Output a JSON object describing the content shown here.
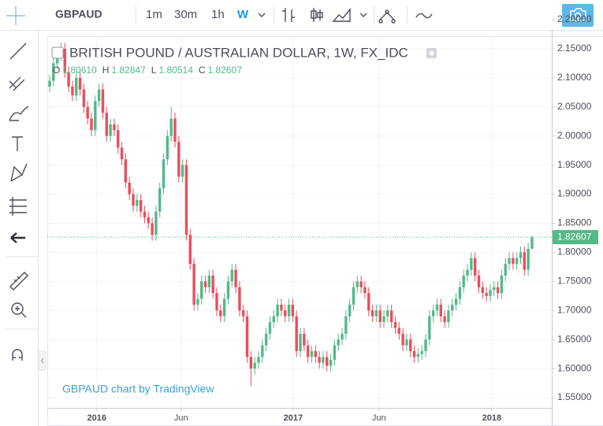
{
  "header": {
    "symbol": "GBPAUD",
    "intervals": [
      "1m",
      "30m",
      "1h",
      "W"
    ]
  },
  "legend": {
    "title": "BRITISH POUND / AUSTRALIAN DOLLAR, 1W, FX_IDC",
    "ohlc": [
      {
        "key": "O",
        "value": "1.80610"
      },
      {
        "key": "H",
        "value": "1.82847"
      },
      {
        "key": "L",
        "value": "1.80514"
      },
      {
        "key": "C",
        "value": "1.82607"
      }
    ]
  },
  "watermark": "GBPAUD chart by TradingView",
  "chart_data": {
    "type": "candlestick",
    "up_color": "#53b987",
    "down_color": "#eb4d5c",
    "grid": true,
    "xlim": [
      -0.62,
      132.2
    ],
    "ylim": [
      1.5338,
      2.2095
    ],
    "xticks": [
      {
        "value": 12.4,
        "label": "2016"
      },
      {
        "value": 34.6,
        "label": "Jun"
      },
      {
        "value": 64.1,
        "label": "2017"
      },
      {
        "value": 86.7,
        "label": "Jun"
      },
      {
        "value": 116.4,
        "label": "2018"
      }
    ],
    "yticks": [
      {
        "value": 2.2,
        "label": "2.20000"
      },
      {
        "value": 2.15,
        "label": "2.15000"
      },
      {
        "value": 2.1,
        "label": "2.10000"
      },
      {
        "value": 2.05,
        "label": "2.05000"
      },
      {
        "value": 2.0,
        "label": "2.00000"
      },
      {
        "value": 1.95,
        "label": "1.95000"
      },
      {
        "value": 1.9,
        "label": "1.90000"
      },
      {
        "value": 1.85,
        "label": "1.85000"
      },
      {
        "value": 1.8,
        "label": "1.80000"
      },
      {
        "value": 1.75,
        "label": "1.75000"
      },
      {
        "value": 1.7,
        "label": "1.70000"
      },
      {
        "value": 1.65,
        "label": "1.65000"
      },
      {
        "value": 1.6,
        "label": "1.60000"
      },
      {
        "value": 1.55,
        "label": "1.55000"
      }
    ],
    "last_price": {
      "value": 1.82607,
      "label": "1.82607"
    },
    "open": [
      2.085,
      2.095,
      2.125,
      2.14,
      2.15,
      2.11,
      2.085,
      2.07,
      2.1,
      2.08,
      2.05,
      2.03,
      2.01,
      2.06,
      2.08,
      2.04,
      2.0,
      2.02,
      2.01,
      1.98,
      1.96,
      1.92,
      1.9,
      1.88,
      1.89,
      1.87,
      1.86,
      1.85,
      1.83,
      1.87,
      1.91,
      1.96,
      2.0,
      2.03,
      1.99,
      1.93,
      1.95,
      1.83,
      1.78,
      1.71,
      1.72,
      1.75,
      1.74,
      1.76,
      1.73,
      1.7,
      1.69,
      1.72,
      1.75,
      1.77,
      1.74,
      1.7,
      1.69,
      1.62,
      1.6,
      1.61,
      1.62,
      1.64,
      1.66,
      1.68,
      1.69,
      1.71,
      1.7,
      1.69,
      1.71,
      1.69,
      1.63,
      1.66,
      1.64,
      1.62,
      1.63,
      1.62,
      1.61,
      1.62,
      1.605,
      1.615,
      1.64,
      1.65,
      1.66,
      1.69,
      1.71,
      1.74,
      1.75,
      1.74,
      1.73,
      1.7,
      1.69,
      1.7,
      1.68,
      1.69,
      1.7,
      1.68,
      1.67,
      1.66,
      1.64,
      1.65,
      1.63,
      1.62,
      1.625,
      1.63,
      1.65,
      1.69,
      1.7,
      1.71,
      1.69,
      1.68,
      1.7,
      1.71,
      1.72,
      1.74,
      1.76,
      1.77,
      1.79,
      1.76,
      1.74,
      1.73,
      1.725,
      1.735,
      1.74,
      1.73,
      1.76,
      1.78,
      1.79,
      1.78,
      1.79,
      1.8,
      1.77,
      1.8061
    ],
    "high": [
      2.105,
      2.135,
      2.15,
      2.16,
      2.16,
      2.12,
      2.095,
      2.11,
      2.11,
      2.09,
      2.06,
      2.04,
      2.07,
      2.09,
      2.09,
      2.05,
      2.03,
      2.03,
      2.02,
      1.99,
      1.97,
      1.93,
      1.91,
      1.9,
      1.9,
      1.88,
      1.87,
      1.86,
      1.88,
      1.92,
      1.97,
      2.01,
      2.05,
      2.04,
      2.0,
      1.96,
      1.96,
      1.84,
      1.79,
      1.73,
      1.76,
      1.76,
      1.77,
      1.77,
      1.74,
      1.71,
      1.73,
      1.76,
      1.78,
      1.78,
      1.75,
      1.71,
      1.7,
      1.63,
      1.62,
      1.63,
      1.65,
      1.67,
      1.69,
      1.7,
      1.72,
      1.72,
      1.71,
      1.72,
      1.72,
      1.7,
      1.67,
      1.67,
      1.65,
      1.64,
      1.64,
      1.63,
      1.63,
      1.63,
      1.625,
      1.65,
      1.66,
      1.67,
      1.7,
      1.72,
      1.75,
      1.76,
      1.76,
      1.75,
      1.74,
      1.71,
      1.71,
      1.71,
      1.7,
      1.71,
      1.71,
      1.69,
      1.68,
      1.67,
      1.66,
      1.66,
      1.64,
      1.635,
      1.64,
      1.66,
      1.7,
      1.71,
      1.72,
      1.72,
      1.7,
      1.71,
      1.72,
      1.73,
      1.75,
      1.77,
      1.78,
      1.8,
      1.8,
      1.77,
      1.75,
      1.74,
      1.745,
      1.75,
      1.75,
      1.77,
      1.79,
      1.8,
      1.8,
      1.8,
      1.81,
      1.81,
      1.816,
      1.82847
    ],
    "low": [
      2.075,
      2.085,
      2.115,
      2.13,
      2.1,
      2.075,
      2.06,
      2.06,
      2.07,
      2.04,
      2.02,
      2.0,
      2.0,
      2.05,
      2.03,
      1.99,
      1.99,
      2.0,
      1.97,
      1.95,
      1.91,
      1.89,
      1.87,
      1.87,
      1.86,
      1.85,
      1.84,
      1.82,
      1.82,
      1.86,
      1.9,
      1.95,
      1.99,
      1.98,
      1.92,
      1.92,
      1.82,
      1.77,
      1.7,
      1.7,
      1.71,
      1.73,
      1.73,
      1.72,
      1.69,
      1.68,
      1.68,
      1.71,
      1.74,
      1.73,
      1.69,
      1.68,
      1.61,
      1.57,
      1.59,
      1.6,
      1.61,
      1.63,
      1.65,
      1.67,
      1.68,
      1.69,
      1.68,
      1.68,
      1.68,
      1.62,
      1.62,
      1.63,
      1.61,
      1.61,
      1.61,
      1.6,
      1.6,
      1.595,
      1.595,
      1.605,
      1.63,
      1.64,
      1.65,
      1.68,
      1.7,
      1.73,
      1.73,
      1.72,
      1.69,
      1.68,
      1.68,
      1.67,
      1.67,
      1.68,
      1.67,
      1.66,
      1.65,
      1.63,
      1.63,
      1.62,
      1.61,
      1.61,
      1.615,
      1.62,
      1.64,
      1.68,
      1.69,
      1.68,
      1.67,
      1.67,
      1.69,
      1.7,
      1.71,
      1.73,
      1.75,
      1.76,
      1.75,
      1.73,
      1.72,
      1.715,
      1.715,
      1.725,
      1.72,
      1.72,
      1.75,
      1.77,
      1.77,
      1.77,
      1.78,
      1.76,
      1.76,
      1.80514
    ],
    "close": [
      2.095,
      2.125,
      2.14,
      2.15,
      2.11,
      2.085,
      2.07,
      2.1,
      2.08,
      2.05,
      2.03,
      2.01,
      2.06,
      2.08,
      2.04,
      2.0,
      2.02,
      2.01,
      1.98,
      1.96,
      1.92,
      1.9,
      1.88,
      1.89,
      1.87,
      1.86,
      1.85,
      1.83,
      1.87,
      1.91,
      1.96,
      2.0,
      2.03,
      1.99,
      1.93,
      1.95,
      1.83,
      1.78,
      1.71,
      1.72,
      1.75,
      1.74,
      1.76,
      1.73,
      1.7,
      1.69,
      1.72,
      1.75,
      1.77,
      1.74,
      1.7,
      1.69,
      1.62,
      1.6,
      1.61,
      1.62,
      1.64,
      1.66,
      1.68,
      1.69,
      1.71,
      1.7,
      1.69,
      1.71,
      1.69,
      1.63,
      1.66,
      1.64,
      1.62,
      1.63,
      1.62,
      1.61,
      1.62,
      1.605,
      1.615,
      1.64,
      1.65,
      1.66,
      1.69,
      1.71,
      1.74,
      1.75,
      1.74,
      1.73,
      1.7,
      1.69,
      1.7,
      1.68,
      1.69,
      1.7,
      1.68,
      1.67,
      1.66,
      1.64,
      1.65,
      1.63,
      1.62,
      1.625,
      1.63,
      1.65,
      1.69,
      1.7,
      1.71,
      1.69,
      1.68,
      1.7,
      1.71,
      1.72,
      1.74,
      1.76,
      1.77,
      1.79,
      1.76,
      1.74,
      1.73,
      1.725,
      1.735,
      1.74,
      1.73,
      1.76,
      1.78,
      1.79,
      1.78,
      1.79,
      1.8,
      1.77,
      1.8061,
      1.82607
    ]
  }
}
